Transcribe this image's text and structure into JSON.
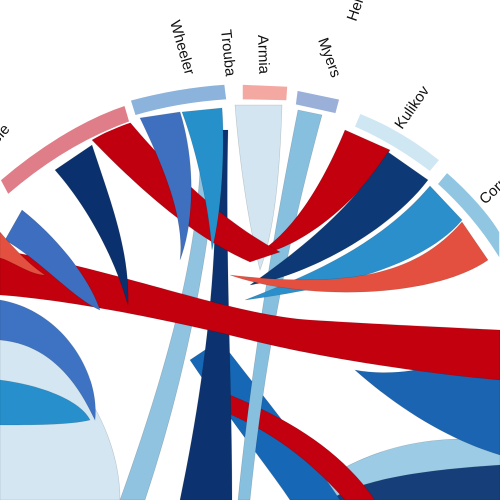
{
  "diagram": {
    "type": "chord",
    "groups": [
      {
        "id": "Cornet",
        "label": "Cornet",
        "color": "#8fc6e2"
      },
      {
        "id": "Kulikov",
        "label": "Kulikov",
        "color": "#cde5f3"
      },
      {
        "id": "Hellebuyck",
        "label": "Hellebuyck",
        "color": "#ffffff"
      },
      {
        "id": "Myers",
        "label": "Myers",
        "color": "#9aaed8"
      },
      {
        "id": "Armia",
        "label": "Armia",
        "color": "#f0a7a0"
      },
      {
        "id": "Trouba",
        "label": "Trouba",
        "color": "#ffffff"
      },
      {
        "id": "Wheeler",
        "label": "Wheeler",
        "color": "#86b2da"
      },
      {
        "id": "Scheifele",
        "label": "ifele",
        "color": "#de7d87"
      }
    ]
  },
  "colors": {
    "dark_red": "#bf0010",
    "red": "#e0503f",
    "pink": "#e07d87",
    "navy": "#08306b",
    "blue_dark": "#1462b0",
    "blue": "#3f6fbe",
    "blue_mid": "#2b8fcb",
    "blue_light": "#84c2e0",
    "blue_pale": "#cfe3f0"
  }
}
